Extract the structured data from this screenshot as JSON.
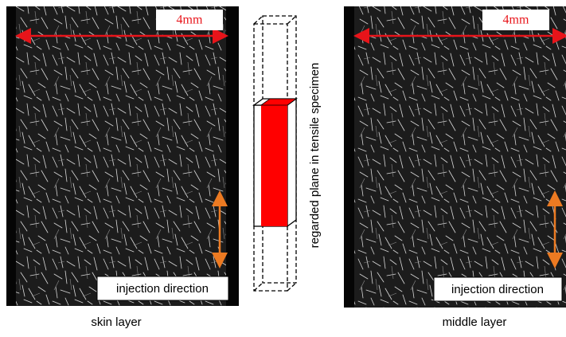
{
  "panels": [
    {
      "scale_label": "4mm",
      "direction_label": "injection direction",
      "caption": "skin layer"
    },
    {
      "scale_label": "4mm",
      "direction_label": "injection direction",
      "caption": "middle layer"
    }
  ],
  "specimen": {
    "label": "regarded plane in tensile specimen"
  }
}
